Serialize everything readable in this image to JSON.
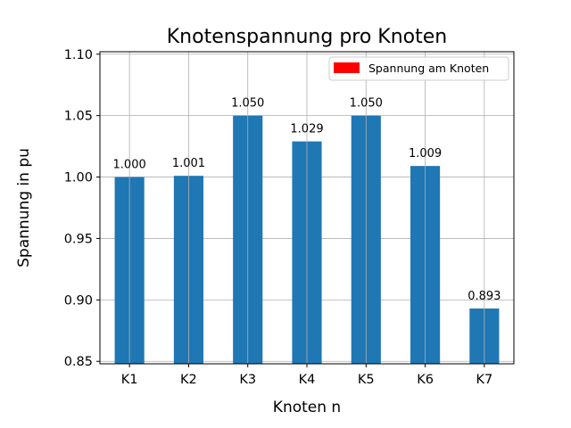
{
  "chart_data": {
    "type": "bar",
    "title": "Knotenspannung pro Knoten",
    "xlabel": "Knoten n",
    "ylabel": "Spannung in pu",
    "categories": [
      "K1",
      "K2",
      "K3",
      "K4",
      "K5",
      "K6",
      "K7"
    ],
    "series": [
      {
        "name": "Spannung am Knoten",
        "values": [
          1.0,
          1.001,
          1.05,
          1.029,
          1.05,
          1.009,
          0.893
        ],
        "labels": [
          "1.000",
          "1.001",
          "1.050",
          "1.029",
          "1.050",
          "1.009",
          "0.893"
        ]
      }
    ],
    "ylim": [
      0.848,
      1.102
    ],
    "yticks": [
      0.85,
      0.9,
      0.95,
      1.0,
      1.05,
      1.1
    ],
    "ytick_labels": [
      "0.85",
      "0.90",
      "0.95",
      "1.00",
      "1.05",
      "1.10"
    ],
    "grid": true,
    "legend": {
      "position": "top-right",
      "entries": [
        "Spannung am Knoten"
      ]
    },
    "colors": {
      "bar": "#1f77b4",
      "legend_patch": "#ff0000"
    }
  }
}
